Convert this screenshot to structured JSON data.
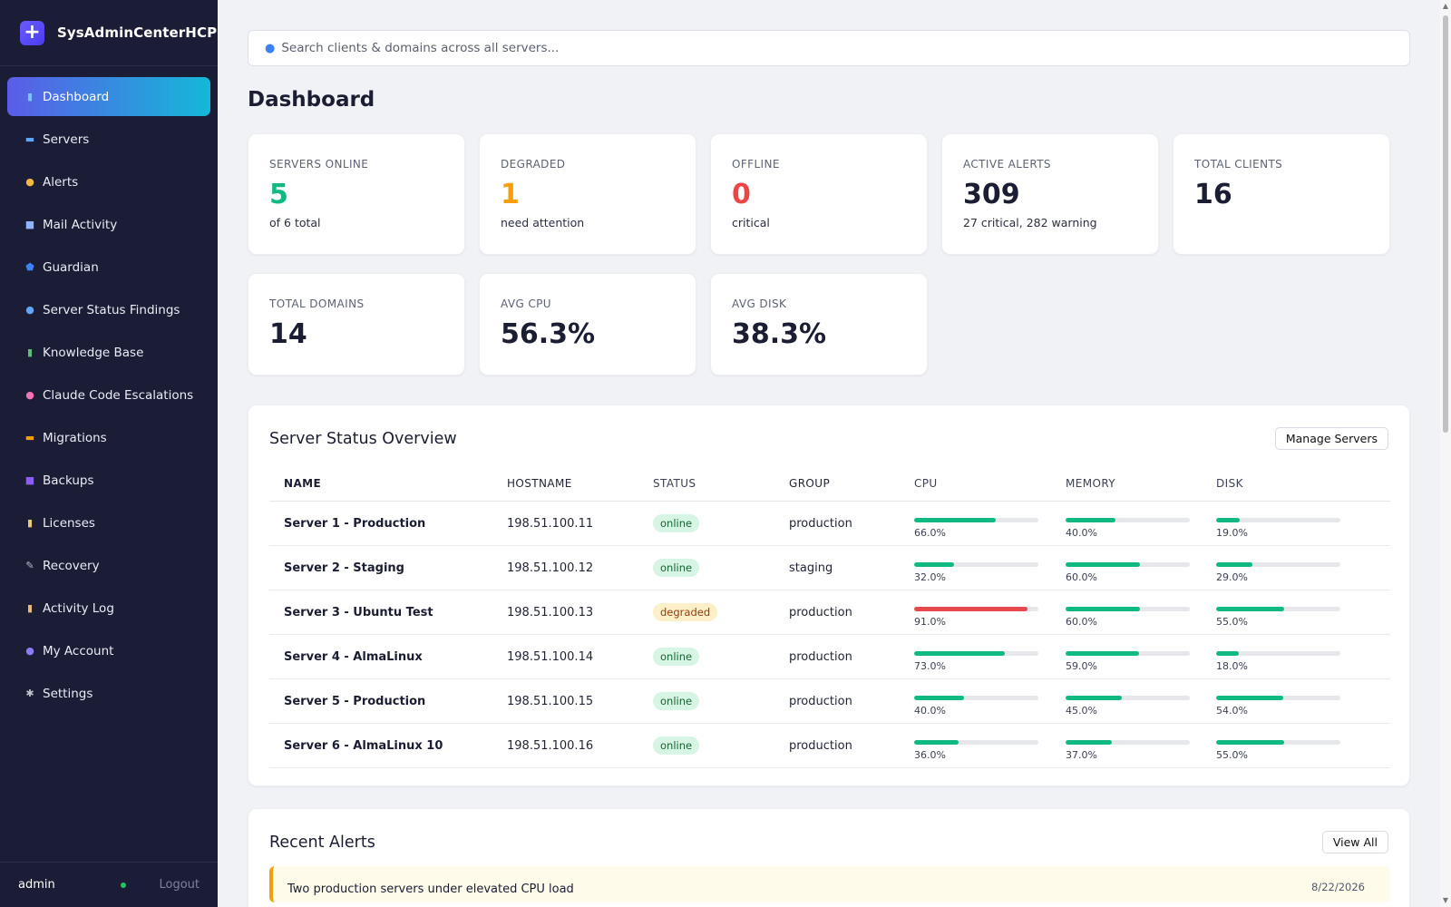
{
  "brand": {
    "logo": "+",
    "name": "SysAdminCenterHCP"
  },
  "nav": [
    {
      "label": "Dashboard",
      "icon": "chart-icon",
      "glyph": "▮",
      "color": "#7cc3ff",
      "active": true
    },
    {
      "label": "Servers",
      "icon": "monitor-icon",
      "glyph": "▬",
      "color": "#60a5fa"
    },
    {
      "label": "Alerts",
      "icon": "bell-icon",
      "glyph": "●",
      "color": "#f5b942"
    },
    {
      "label": "Mail Activity",
      "icon": "mail-icon",
      "glyph": "■",
      "color": "#8fb3ff"
    },
    {
      "label": "Guardian",
      "icon": "shield-icon",
      "glyph": "⬟",
      "color": "#3b82f6"
    },
    {
      "label": "Server Status Findings",
      "icon": "magnifier-icon",
      "glyph": "●",
      "color": "#60a5fa"
    },
    {
      "label": "Knowledge Base",
      "icon": "books-icon",
      "glyph": "▮",
      "color": "#5bbf7a"
    },
    {
      "label": "Claude Code Escalations",
      "icon": "brain-icon",
      "glyph": "●",
      "color": "#f472b6"
    },
    {
      "label": "Migrations",
      "icon": "truck-icon",
      "glyph": "▬",
      "color": "#f59e0b"
    },
    {
      "label": "Backups",
      "icon": "floppy-disk-icon",
      "glyph": "■",
      "color": "#8b5cf6"
    },
    {
      "label": "Licenses",
      "icon": "scroll-icon",
      "glyph": "▮",
      "color": "#e9c77b"
    },
    {
      "label": "Recovery",
      "icon": "wrench-icon",
      "glyph": "✎",
      "color": "#b8bcc8"
    },
    {
      "label": "Activity Log",
      "icon": "clipboard-icon",
      "glyph": "▮",
      "color": "#e9b77b"
    },
    {
      "label": "My Account",
      "icon": "user-icon",
      "glyph": "●",
      "color": "#8b7cf6"
    },
    {
      "label": "Settings",
      "icon": "gear-icon",
      "glyph": "✱",
      "color": "#c0c4d0"
    }
  ],
  "footer": {
    "user": "admin",
    "logout": "Logout"
  },
  "search": {
    "placeholder": "Search clients & domains across all servers..."
  },
  "page_title": "Dashboard",
  "stats": [
    {
      "label": "SERVERS ONLINE",
      "value": "5",
      "sub": "of 6 total",
      "color": "#10b981"
    },
    {
      "label": "DEGRADED",
      "value": "1",
      "sub": "need attention",
      "color": "#f59e0b"
    },
    {
      "label": "OFFLINE",
      "value": "0",
      "sub": "critical",
      "color": "#ef4444"
    },
    {
      "label": "ACTIVE ALERTS",
      "value": "309",
      "sub": "27 critical, 282 warning",
      "color": "#1b1e33"
    },
    {
      "label": "TOTAL CLIENTS",
      "value": "16",
      "sub": "",
      "color": "#1b1e33"
    },
    {
      "label": "TOTAL DOMAINS",
      "value": "14",
      "sub": "",
      "color": "#1b1e33"
    },
    {
      "label": "AVG CPU",
      "value": "56.3%",
      "sub": "",
      "color": "#1b1e33"
    },
    {
      "label": "AVG DISK",
      "value": "38.3%",
      "sub": "",
      "color": "#1b1e33"
    }
  ],
  "server_overview": {
    "title": "Server Status Overview",
    "button": "Manage Servers",
    "columns": [
      "NAME",
      "HOSTNAME",
      "STATUS",
      "GROUP",
      "CPU",
      "MEMORY",
      "DISK"
    ],
    "rows": [
      {
        "name": "Server 1 - Production",
        "hostname": "198.51.100.11",
        "status": "online",
        "group": "production",
        "cpu": 66.0,
        "memory": 40.0,
        "disk": 19.0
      },
      {
        "name": "Server 2 - Staging",
        "hostname": "198.51.100.12",
        "status": "online",
        "group": "staging",
        "cpu": 32.0,
        "memory": 60.0,
        "disk": 29.0
      },
      {
        "name": "Server 3 - Ubuntu Test",
        "hostname": "198.51.100.13",
        "status": "degraded",
        "group": "production",
        "cpu": 91.0,
        "memory": 60.0,
        "disk": 55.0
      },
      {
        "name": "Server 4 - AlmaLinux",
        "hostname": "198.51.100.14",
        "status": "online",
        "group": "production",
        "cpu": 73.0,
        "memory": 59.0,
        "disk": 18.0
      },
      {
        "name": "Server 5 - Production",
        "hostname": "198.51.100.15",
        "status": "online",
        "group": "production",
        "cpu": 40.0,
        "memory": 45.0,
        "disk": 54.0
      },
      {
        "name": "Server 6 - AlmaLinux 10",
        "hostname": "198.51.100.16",
        "status": "online",
        "group": "production",
        "cpu": 36.0,
        "memory": 37.0,
        "disk": 55.0
      }
    ]
  },
  "recent_alerts": {
    "title": "Recent Alerts",
    "button": "View All",
    "items": [
      {
        "title": "Two production servers under elevated CPU load",
        "date": "8/22/2026"
      }
    ]
  }
}
